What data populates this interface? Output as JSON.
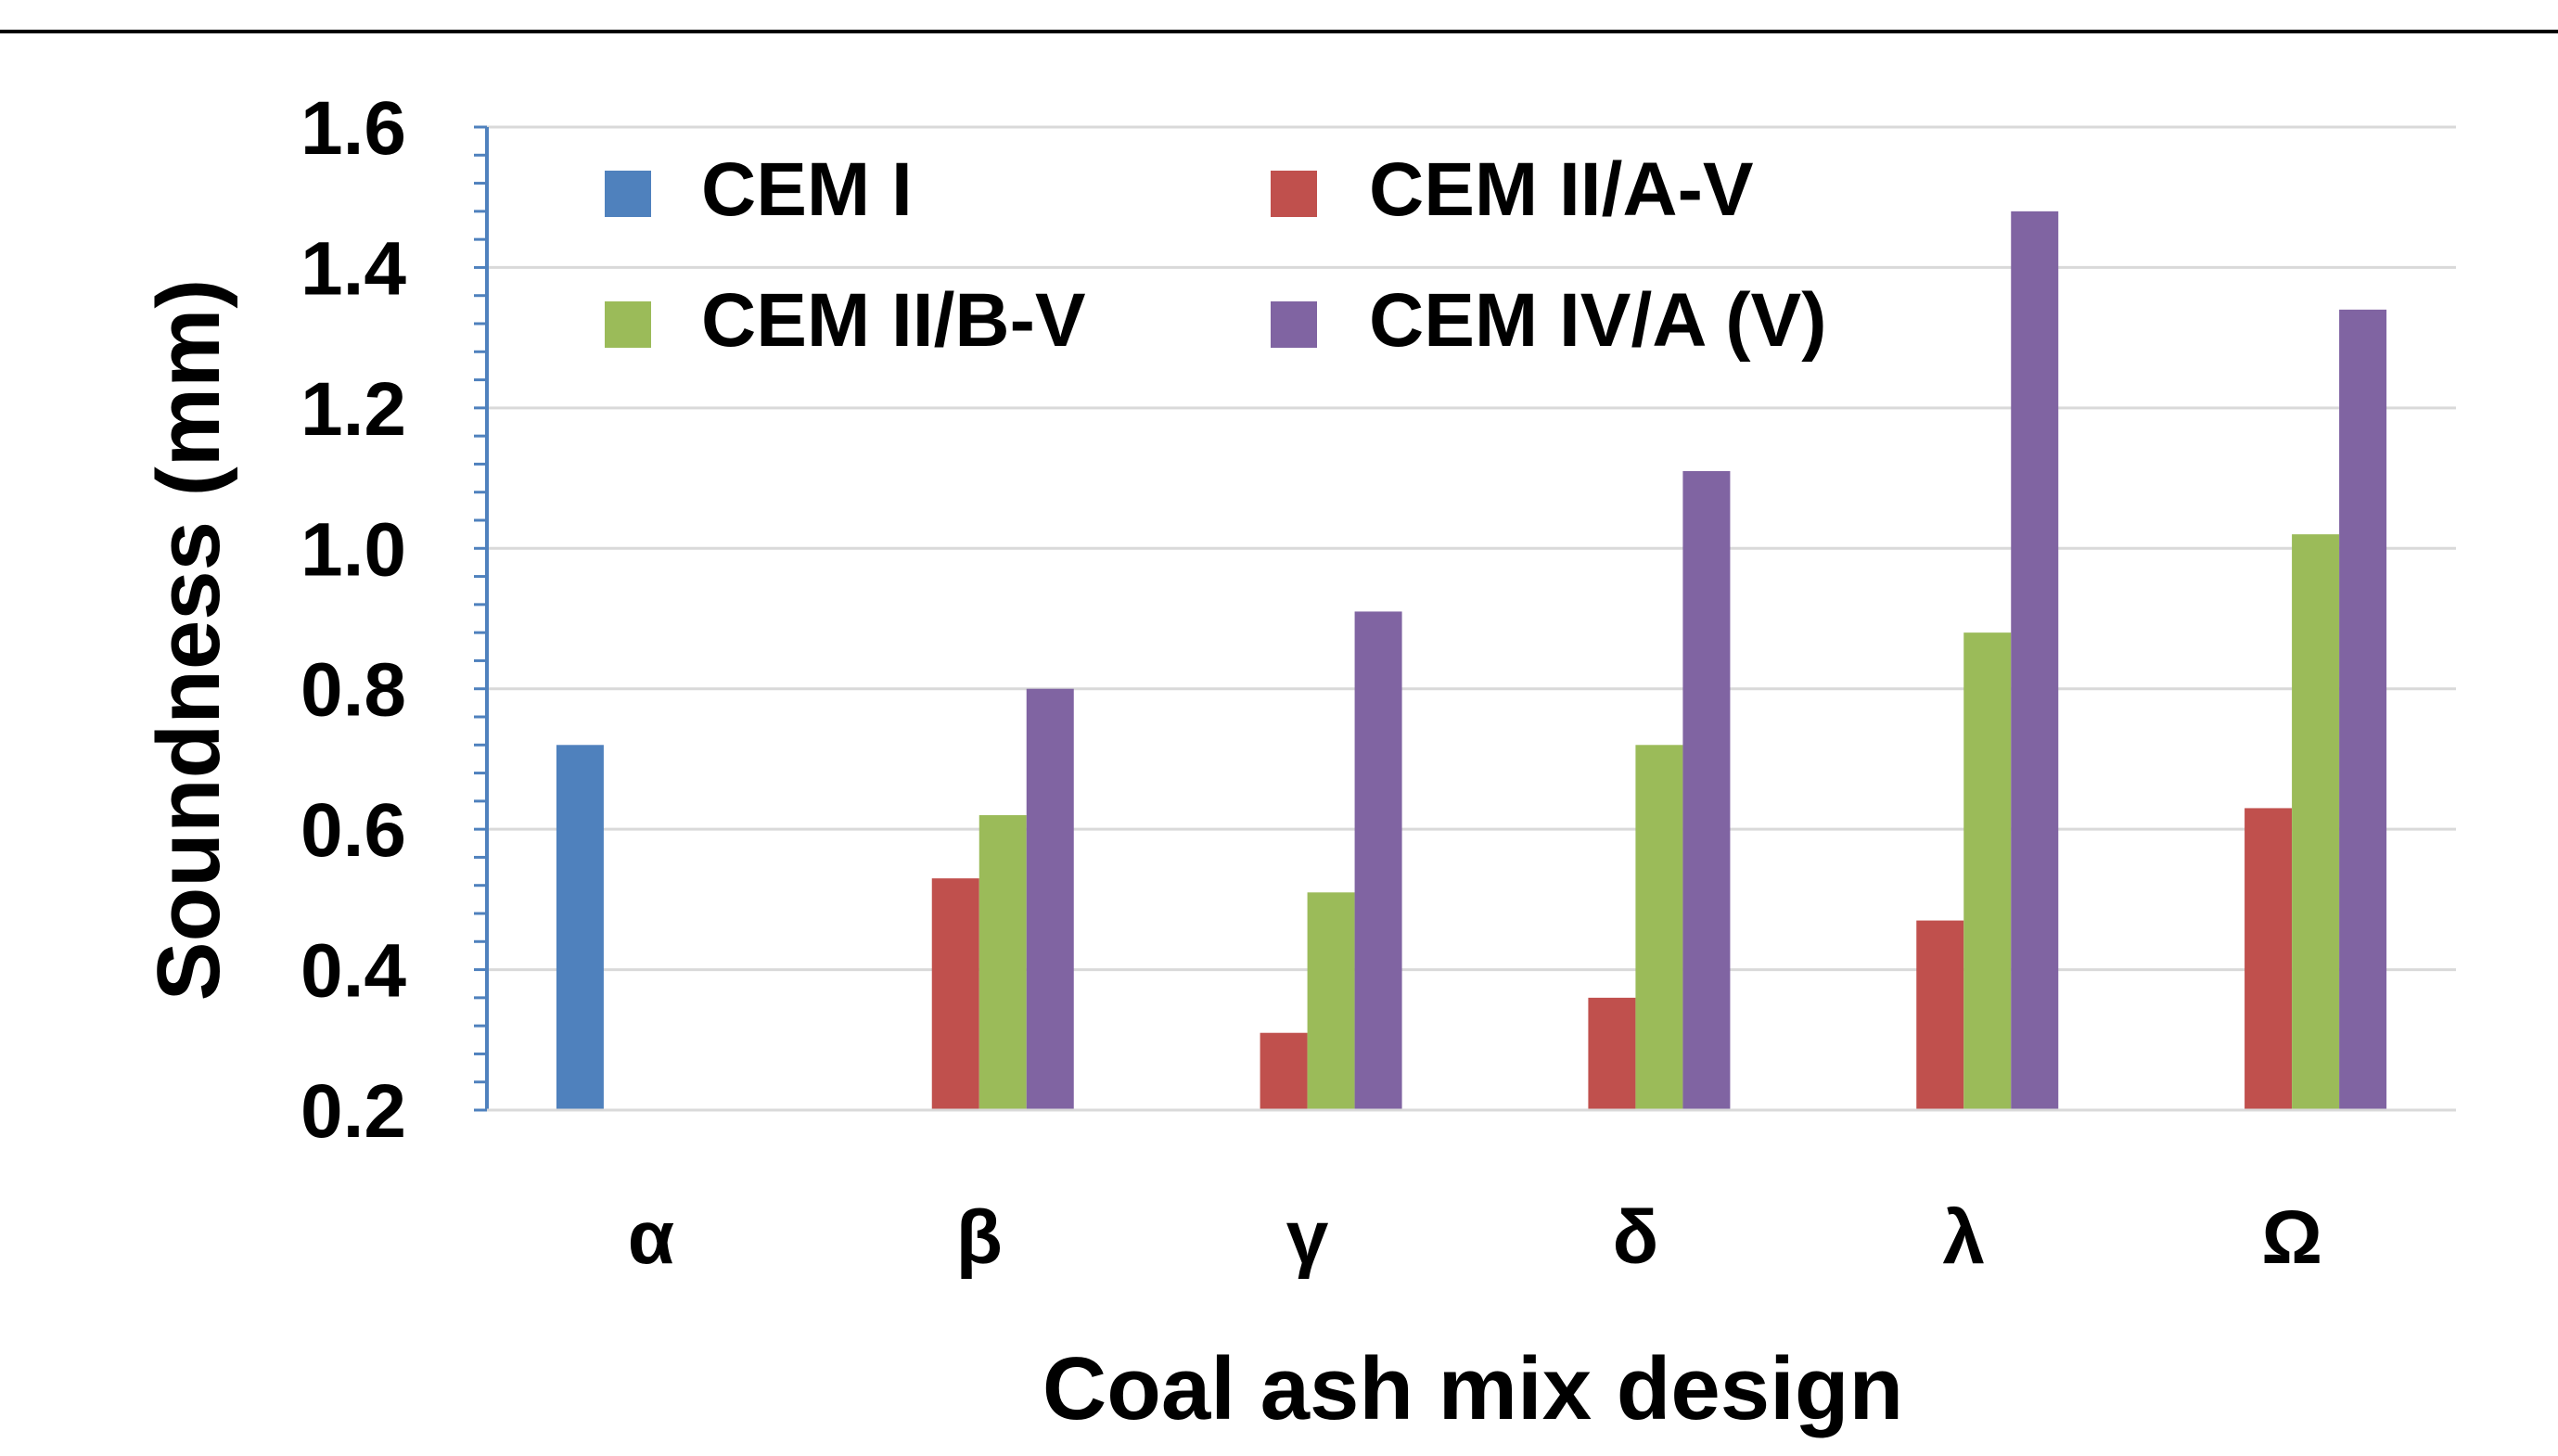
{
  "chart_data": {
    "type": "bar",
    "title": "",
    "xlabel": "Coal ash mix design",
    "ylabel": "Soundness (mm)",
    "categories": [
      "α",
      "β",
      "γ",
      "δ",
      "λ",
      "Ω"
    ],
    "ylim": [
      0.2,
      1.6
    ],
    "yticks": [
      "0.2",
      "0.4",
      "0.6",
      "0.8",
      "1.0",
      "1.2",
      "1.4",
      "1.6"
    ],
    "grid": true,
    "legend_position": "top-left",
    "series": [
      {
        "name": "CEM I",
        "color": "#4F81BD",
        "values": [
          0.72,
          null,
          null,
          null,
          null,
          null
        ]
      },
      {
        "name": "CEM II/A-V",
        "color": "#C0504D",
        "values": [
          null,
          0.53,
          0.31,
          0.36,
          0.47,
          0.63
        ]
      },
      {
        "name": "CEM II/B-V",
        "color": "#9BBB59",
        "values": [
          null,
          0.62,
          0.51,
          0.72,
          0.88,
          1.02
        ]
      },
      {
        "name": "CEM IV/A (V)",
        "color": "#8064A2",
        "values": [
          null,
          0.8,
          0.91,
          1.11,
          1.48,
          1.34
        ]
      }
    ]
  }
}
